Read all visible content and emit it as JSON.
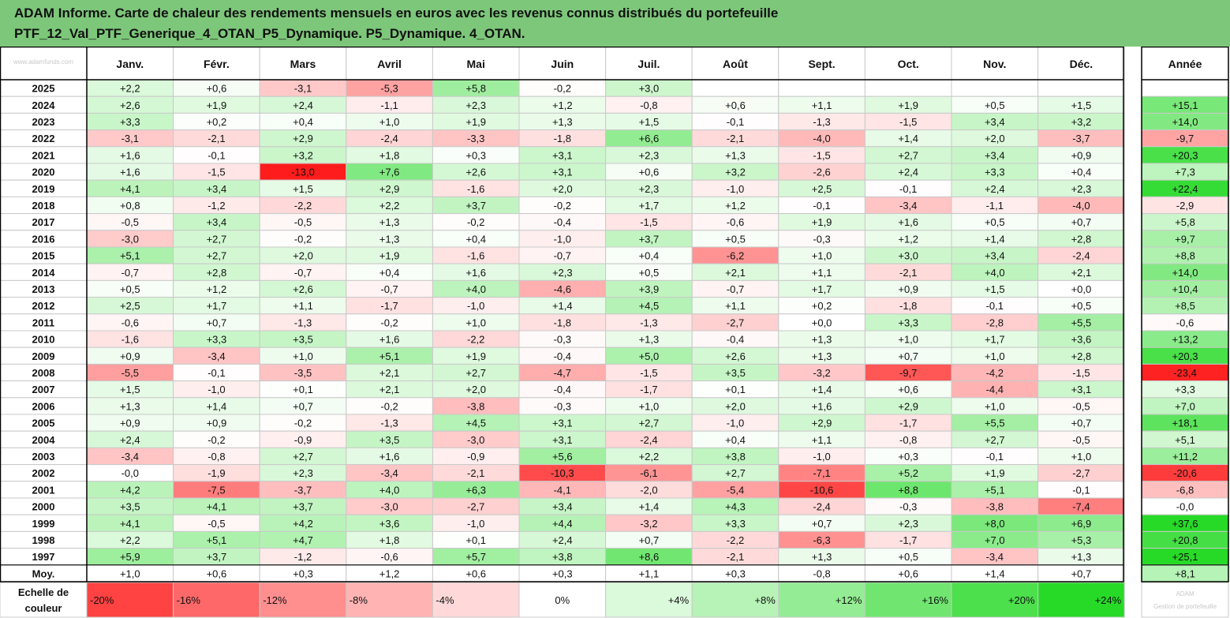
{
  "title": {
    "line1": "ADAM Informe. Carte de chaleur des rendements mensuels en euros avec les revenus connus distribués du portefeuille",
    "line2": "PTF_12_Val_PTF_Generique_4_OTAN_P5_Dynamique. P5_Dynamique. 4_OTAN."
  },
  "corner_watermark": "www.adamfunds.com",
  "bottom_watermark": "ADAM\nGestion de portefeuille",
  "chart_data": {
    "type": "heatmap",
    "columns": [
      "Janv.",
      "Févr.",
      "Mars",
      "Avril",
      "Mai",
      "Juin",
      "Juil.",
      "Août",
      "Sept.",
      "Oct.",
      "Nov.",
      "Déc."
    ],
    "year_column": "Année",
    "rows": [
      {
        "year": "2025",
        "values": [
          "+2,2",
          "+0,6",
          "-3,1",
          "-5,3",
          "+5,8",
          "-0,2",
          "+3,0",
          "",
          "",
          "",
          "",
          ""
        ],
        "annual": ""
      },
      {
        "year": "2024",
        "values": [
          "+2,6",
          "+1,9",
          "+2,4",
          "-1,1",
          "+2,3",
          "+1,2",
          "-0,8",
          "+0,6",
          "+1,1",
          "+1,9",
          "+0,5",
          "+1,5"
        ],
        "annual": "+15,1"
      },
      {
        "year": "2023",
        "values": [
          "+3,3",
          "+0,2",
          "+0,4",
          "+1,0",
          "+1,9",
          "+1,3",
          "+1,5",
          "-0,1",
          "-1,3",
          "-1,5",
          "+3,4",
          "+3,2"
        ],
        "annual": "+14,0"
      },
      {
        "year": "2022",
        "values": [
          "-3,1",
          "-2,1",
          "+2,9",
          "-2,4",
          "-3,3",
          "-1,8",
          "+6,6",
          "-2,1",
          "-4,0",
          "+1,4",
          "+2,0",
          "-3,7"
        ],
        "annual": "-9,7"
      },
      {
        "year": "2021",
        "values": [
          "+1,6",
          "-0,1",
          "+3,2",
          "+1,8",
          "+0,3",
          "+3,1",
          "+2,3",
          "+1,3",
          "-1,5",
          "+2,7",
          "+3,4",
          "+0,9"
        ],
        "annual": "+20,3"
      },
      {
        "year": "2020",
        "values": [
          "+1,6",
          "-1,5",
          "-13,0",
          "+7,6",
          "+2,6",
          "+3,1",
          "+0,6",
          "+3,2",
          "-2,6",
          "+2,4",
          "+3,3",
          "+0,4"
        ],
        "annual": "+7,3"
      },
      {
        "year": "2019",
        "values": [
          "+4,1",
          "+3,4",
          "+1,5",
          "+2,9",
          "-1,6",
          "+2,0",
          "+2,3",
          "-1,0",
          "+2,5",
          "-0,1",
          "+2,4",
          "+2,3"
        ],
        "annual": "+22,4"
      },
      {
        "year": "2018",
        "values": [
          "+0,8",
          "-1,2",
          "-2,2",
          "+2,2",
          "+3,7",
          "-0,2",
          "+1,7",
          "+1,2",
          "-0,1",
          "-3,4",
          "-1,1",
          "-4,0"
        ],
        "annual": "-2,9"
      },
      {
        "year": "2017",
        "values": [
          "-0,5",
          "+3,4",
          "-0,5",
          "+1,3",
          "-0,2",
          "-0,4",
          "-1,5",
          "-0,6",
          "+1,9",
          "+1,6",
          "+0,5",
          "+0,7"
        ],
        "annual": "+5,8"
      },
      {
        "year": "2016",
        "values": [
          "-3,0",
          "+2,7",
          "-0,2",
          "+1,3",
          "+0,4",
          "-1,0",
          "+3,7",
          "+0,5",
          "-0,3",
          "+1,2",
          "+1,4",
          "+2,8"
        ],
        "annual": "+9,7"
      },
      {
        "year": "2015",
        "values": [
          "+5,1",
          "+2,7",
          "+2,0",
          "+1,9",
          "-1,6",
          "-0,7",
          "+0,4",
          "-6,2",
          "+1,0",
          "+3,0",
          "+3,4",
          "-2,4"
        ],
        "annual": "+8,8"
      },
      {
        "year": "2014",
        "values": [
          "-0,7",
          "+2,8",
          "-0,7",
          "+0,4",
          "+1,6",
          "+2,3",
          "+0,5",
          "+2,1",
          "+1,1",
          "-2,1",
          "+4,0",
          "+2,1"
        ],
        "annual": "+14,0"
      },
      {
        "year": "2013",
        "values": [
          "+0,5",
          "+1,2",
          "+2,6",
          "-0,7",
          "+4,0",
          "-4,6",
          "+3,9",
          "-0,7",
          "+1,7",
          "+0,9",
          "+1,5",
          "+0,0"
        ],
        "annual": "+10,4"
      },
      {
        "year": "2012",
        "values": [
          "+2,5",
          "+1,7",
          "+1,1",
          "-1,7",
          "-1,0",
          "+1,4",
          "+4,5",
          "+1,1",
          "+0,2",
          "-1,8",
          "-0,1",
          "+0,5"
        ],
        "annual": "+8,5"
      },
      {
        "year": "2011",
        "values": [
          "-0,6",
          "+0,7",
          "-1,3",
          "-0,2",
          "+1,0",
          "-1,8",
          "-1,3",
          "-2,7",
          "+0,0",
          "+3,3",
          "-2,8",
          "+5,5"
        ],
        "annual": "-0,6"
      },
      {
        "year": "2010",
        "values": [
          "-1,6",
          "+3,3",
          "+3,5",
          "+1,6",
          "-2,2",
          "-0,3",
          "+1,3",
          "-0,4",
          "+1,3",
          "+1,0",
          "+1,7",
          "+3,6"
        ],
        "annual": "+13,2"
      },
      {
        "year": "2009",
        "values": [
          "+0,9",
          "-3,4",
          "+1,0",
          "+5,1",
          "+1,9",
          "-0,4",
          "+5,0",
          "+2,6",
          "+1,3",
          "+0,7",
          "+1,0",
          "+2,8"
        ],
        "annual": "+20,3"
      },
      {
        "year": "2008",
        "values": [
          "-5,5",
          "-0,1",
          "-3,5",
          "+2,1",
          "+2,7",
          "-4,7",
          "-1,5",
          "+3,5",
          "-3,2",
          "-9,7",
          "-4,2",
          "-1,5"
        ],
        "annual": "-23,4"
      },
      {
        "year": "2007",
        "values": [
          "+1,5",
          "-1,0",
          "+0,1",
          "+2,1",
          "+2,0",
          "-0,4",
          "-1,7",
          "+0,1",
          "+1,4",
          "+0,6",
          "-4,4",
          "+3,1"
        ],
        "annual": "+3,3"
      },
      {
        "year": "2006",
        "values": [
          "+1,3",
          "+1,4",
          "+0,7",
          "-0,2",
          "-3,8",
          "-0,3",
          "+1,0",
          "+2,0",
          "+1,6",
          "+2,9",
          "+1,0",
          "-0,5"
        ],
        "annual": "+7,0"
      },
      {
        "year": "2005",
        "values": [
          "+0,9",
          "+0,9",
          "-0,2",
          "-1,3",
          "+4,5",
          "+3,1",
          "+2,7",
          "-1,0",
          "+2,9",
          "-1,7",
          "+5,5",
          "+0,7"
        ],
        "annual": "+18,1"
      },
      {
        "year": "2004",
        "values": [
          "+2,4",
          "-0,2",
          "-0,9",
          "+3,5",
          "-3,0",
          "+3,1",
          "-2,4",
          "+0,4",
          "+1,1",
          "-0,8",
          "+2,7",
          "-0,5"
        ],
        "annual": "+5,1"
      },
      {
        "year": "2003",
        "values": [
          "-3,4",
          "-0,8",
          "+2,7",
          "+1,6",
          "-0,9",
          "+5,6",
          "+2,2",
          "+3,8",
          "-1,0",
          "+0,3",
          "-0,1",
          "+1,0"
        ],
        "annual": "+11,2"
      },
      {
        "year": "2002",
        "values": [
          "-0,0",
          "-1,9",
          "+2,3",
          "-3,4",
          "-2,1",
          "-10,3",
          "-6,1",
          "+2,7",
          "-7,1",
          "+5,2",
          "+1,9",
          "-2,7"
        ],
        "annual": "-20,6"
      },
      {
        "year": "2001",
        "values": [
          "+4,2",
          "-7,5",
          "-3,7",
          "+4,0",
          "+6,3",
          "-4,1",
          "-2,0",
          "-5,4",
          "-10,6",
          "+8,8",
          "+5,1",
          "-0,1"
        ],
        "annual": "-6,8"
      },
      {
        "year": "2000",
        "values": [
          "+3,5",
          "+4,1",
          "+3,7",
          "-3,0",
          "-2,7",
          "+3,4",
          "+1,4",
          "+4,3",
          "-2,4",
          "-0,3",
          "-3,8",
          "-7,4"
        ],
        "annual": "-0,0"
      },
      {
        "year": "1999",
        "values": [
          "+4,1",
          "-0,5",
          "+4,2",
          "+3,6",
          "-1,0",
          "+4,4",
          "-3,2",
          "+3,3",
          "+0,7",
          "+2,3",
          "+8,0",
          "+6,9"
        ],
        "annual": "+37,6"
      },
      {
        "year": "1998",
        "values": [
          "+2,2",
          "+5,1",
          "+4,7",
          "+1,8",
          "+0,1",
          "+2,4",
          "+0,7",
          "-2,2",
          "-6,3",
          "-1,7",
          "+7,0",
          "+5,3"
        ],
        "annual": "+20,8"
      },
      {
        "year": "1997",
        "values": [
          "+5,9",
          "+3,7",
          "-1,2",
          "-0,6",
          "+5,7",
          "+3,8",
          "+8,6",
          "-2,1",
          "+1,3",
          "+0,5",
          "-3,4",
          "+1,3"
        ],
        "annual": "+25,1"
      }
    ],
    "average": {
      "label": "Moy.",
      "values": [
        "+1,0",
        "+0,6",
        "+0,3",
        "+1,2",
        "+0,6",
        "+0,3",
        "+1,1",
        "+0,3",
        "-0,8",
        "+0,6",
        "+1,4",
        "+0,7"
      ],
      "annual": "+8,1"
    },
    "scale": {
      "label_line1": "Echelle de",
      "label_line2": "couleur",
      "steps": [
        "-20%",
        "-16%",
        "-12%",
        "-8%",
        "-4%",
        "0%",
        "+4%",
        "+8%",
        "+12%",
        "+16%",
        "+20%",
        "+24%"
      ]
    },
    "colors": {
      "title_bg": "#7dc77a",
      "neg_full": "#ff1a1a",
      "pos_full": "#1fd81f",
      "neutral": "#ffffff"
    }
  }
}
